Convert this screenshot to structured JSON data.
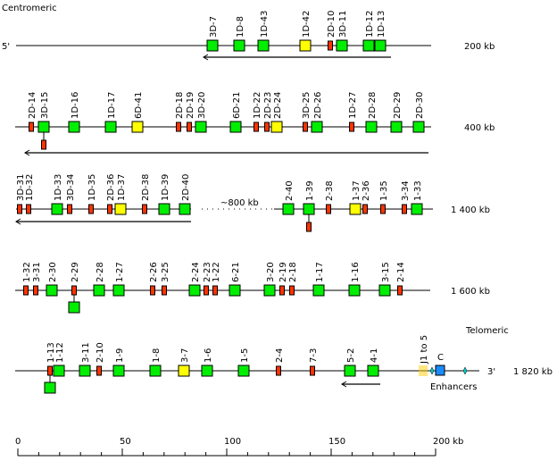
{
  "labels": {
    "centromeric": "Centromeric",
    "telomeric": "Telomeric",
    "five_prime": "5'",
    "three_prime": "3'",
    "gap": "~800 kb",
    "enhancers": "Enhancers",
    "j_segments": "J1 to 5",
    "constant": "C"
  },
  "colors": {
    "functional": "#00ee00",
    "orf": "#ffff00",
    "pseudogene": "#ff3300",
    "constant": "#1a8cff",
    "j": "#ffcc00",
    "enhancer": "#00cccc"
  },
  "rows": [
    {
      "end_label": "200 kb",
      "genes": [
        {
          "name": "3D-7",
          "type": "functional"
        },
        {
          "name": "1D-8",
          "type": "functional"
        },
        {
          "name": "1D-43",
          "type": "functional"
        },
        {
          "name": "1D-42",
          "type": "orf"
        },
        {
          "name": "2D-10",
          "type": "pseudogene"
        },
        {
          "name": "3D-11",
          "type": "functional"
        },
        {
          "name": "1D-12",
          "type": "functional"
        },
        {
          "name": "1D-13",
          "type": "functional"
        }
      ]
    },
    {
      "end_label": "400 kb",
      "genes": [
        {
          "name": "2D-14",
          "type": "pseudogene"
        },
        {
          "name": "3D-15",
          "type": "functional",
          "below": "pseudogene"
        },
        {
          "name": "1D-16",
          "type": "functional"
        },
        {
          "name": "1D-17",
          "type": "functional"
        },
        {
          "name": "6D-41",
          "type": "orf"
        },
        {
          "name": "2D-18",
          "type": "pseudogene"
        },
        {
          "name": "2D-19",
          "type": "pseudogene"
        },
        {
          "name": "3D-20",
          "type": "functional"
        },
        {
          "name": "6D-21",
          "type": "functional"
        },
        {
          "name": "1D-22",
          "type": "pseudogene"
        },
        {
          "name": "2D-23",
          "type": "pseudogene"
        },
        {
          "name": "2D-24",
          "type": "orf"
        },
        {
          "name": "3D-25",
          "type": "pseudogene"
        },
        {
          "name": "2D-26",
          "type": "functional"
        },
        {
          "name": "1D-27",
          "type": "pseudogene"
        },
        {
          "name": "2D-28",
          "type": "functional"
        },
        {
          "name": "2D-29",
          "type": "functional"
        },
        {
          "name": "2D-30",
          "type": "functional"
        }
      ]
    },
    {
      "end_label": "1 400 kb",
      "genes": [
        {
          "name": "3D-31",
          "type": "pseudogene"
        },
        {
          "name": "1D-32",
          "type": "pseudogene"
        },
        {
          "name": "1D-33",
          "type": "functional"
        },
        {
          "name": "3D-34",
          "type": "pseudogene"
        },
        {
          "name": "1D-35",
          "type": "pseudogene"
        },
        {
          "name": "2D-36",
          "type": "pseudogene"
        },
        {
          "name": "1D-37",
          "type": "orf"
        },
        {
          "name": "2D-38",
          "type": "pseudogene"
        },
        {
          "name": "1D-39",
          "type": "functional"
        },
        {
          "name": "2D-40",
          "type": "functional"
        },
        {
          "name": "2-40",
          "type": "functional"
        },
        {
          "name": "1-39",
          "type": "functional",
          "below": "pseudogene"
        },
        {
          "name": "2-38",
          "type": "pseudogene"
        },
        {
          "name": "1-37",
          "type": "orf"
        },
        {
          "name": "2-36",
          "type": "pseudogene"
        },
        {
          "name": "1-35",
          "type": "pseudogene"
        },
        {
          "name": "3-34",
          "type": "pseudogene"
        },
        {
          "name": "1-33",
          "type": "functional"
        }
      ]
    },
    {
      "end_label": "1 600 kb",
      "genes": [
        {
          "name": "1-32",
          "type": "pseudogene"
        },
        {
          "name": "3-31",
          "type": "pseudogene"
        },
        {
          "name": "2-30",
          "type": "functional"
        },
        {
          "name": "2-29",
          "type": "pseudogene",
          "below": "functional"
        },
        {
          "name": "2-28",
          "type": "functional"
        },
        {
          "name": "1-27",
          "type": "functional"
        },
        {
          "name": "2-26",
          "type": "pseudogene"
        },
        {
          "name": "3-25",
          "type": "pseudogene"
        },
        {
          "name": "2-24",
          "type": "functional"
        },
        {
          "name": "2-23",
          "type": "pseudogene"
        },
        {
          "name": "1-22",
          "type": "pseudogene"
        },
        {
          "name": "6-21",
          "type": "functional"
        },
        {
          "name": "3-20",
          "type": "functional"
        },
        {
          "name": "2-19",
          "type": "pseudogene"
        },
        {
          "name": "2-18",
          "type": "pseudogene"
        },
        {
          "name": "1-17",
          "type": "functional"
        },
        {
          "name": "1-16",
          "type": "functional"
        },
        {
          "name": "3-15",
          "type": "functional"
        },
        {
          "name": "2-14",
          "type": "pseudogene"
        }
      ]
    },
    {
      "end_label": "1 820 kb",
      "genes": [
        {
          "name": "1-13",
          "type": "pseudogene",
          "below": "functional"
        },
        {
          "name": "1-12",
          "type": "functional"
        },
        {
          "name": "3-11",
          "type": "functional"
        },
        {
          "name": "2-10",
          "type": "pseudogene"
        },
        {
          "name": "1-9",
          "type": "functional"
        },
        {
          "name": "1-8",
          "type": "functional"
        },
        {
          "name": "3-7",
          "type": "orf"
        },
        {
          "name": "1-6",
          "type": "functional"
        },
        {
          "name": "1-5",
          "type": "functional"
        },
        {
          "name": "2-4",
          "type": "pseudogene"
        },
        {
          "name": "7-3",
          "type": "pseudogene"
        },
        {
          "name": "5-2",
          "type": "functional"
        },
        {
          "name": "4-1",
          "type": "functional"
        }
      ]
    }
  ],
  "scale": {
    "ticks": [
      "0",
      "50",
      "100",
      "150",
      "200 kb"
    ],
    "max_kb": 200,
    "minor_step_kb": 10
  }
}
